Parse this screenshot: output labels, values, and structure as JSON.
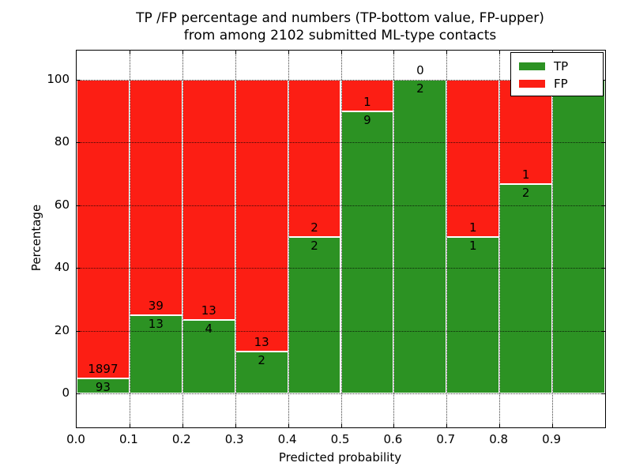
{
  "title": {
    "line1": "TP /FP percentage and numbers (TP-bottom value, FP-upper)",
    "line2": "from among 2102 submitted ML-type contacts"
  },
  "x_axis": {
    "label": "Predicted probability",
    "tick_labels": [
      "0.0",
      "0.1",
      "0.2",
      "0.3",
      "0.4",
      "0.5",
      "0.6",
      "0.7",
      "0.8",
      "0.9"
    ]
  },
  "y_axis": {
    "label": "Percentage",
    "tick_values": [
      0,
      20,
      40,
      60,
      80,
      100
    ]
  },
  "legend": {
    "items": [
      {
        "label": "TP",
        "color": "#2c9223"
      },
      {
        "label": "FP",
        "color": "#fc1e14"
      }
    ]
  },
  "chart_data": {
    "type": "bar",
    "stacked": true,
    "normalized_to_percent": true,
    "title": "TP /FP percentage and numbers (TP-bottom value, FP-upper) from among 2102 submitted ML-type contacts",
    "xlabel": "Predicted probability",
    "ylabel": "Percentage",
    "x_bin_edges": [
      0.0,
      0.1,
      0.2,
      0.3,
      0.4,
      0.5,
      0.6,
      0.7,
      0.8,
      0.9,
      1.0
    ],
    "series": [
      {
        "name": "TP",
        "color": "#2c9223",
        "values": [
          93,
          13,
          4,
          2,
          2,
          9,
          2,
          1,
          2,
          7
        ]
      },
      {
        "name": "FP",
        "color": "#fc1e14",
        "values": [
          1897,
          39,
          13,
          13,
          2,
          1,
          0,
          1,
          1,
          0
        ]
      }
    ],
    "tp_percent_per_bin": [
      4.7,
      25.0,
      23.5,
      13.3,
      50.0,
      90.0,
      100.0,
      50.0,
      66.7,
      100.0
    ],
    "total_contacts": 2102,
    "ylim": [
      -11,
      109
    ],
    "grid": true,
    "legend_position": "upper right"
  }
}
